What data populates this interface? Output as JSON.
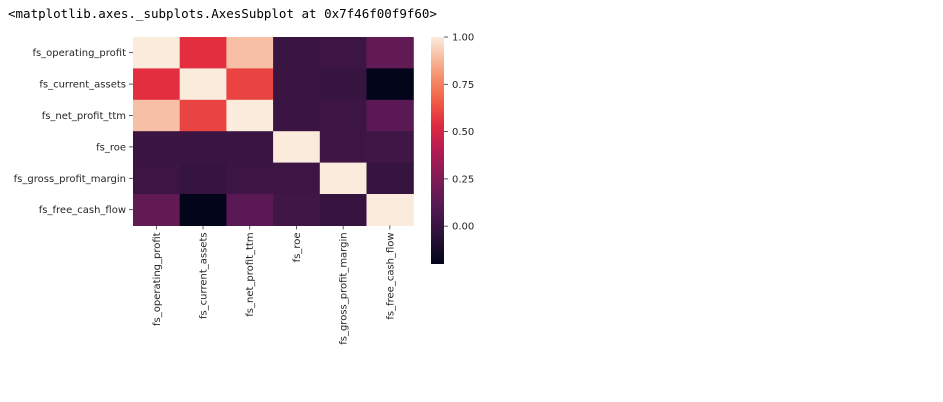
{
  "output_repr": "<matplotlib.axes._subplots.AxesSubplot at 0x7f46f00f9f60>",
  "chart_data": {
    "type": "heatmap",
    "title": "",
    "xlabel": "",
    "ylabel": "",
    "rows": [
      "fs_operating_profit",
      "fs_current_assets",
      "fs_net_profit_ttm",
      "fs_roe",
      "fs_gross_profit_margin",
      "fs_free_cash_flow"
    ],
    "columns": [
      "fs_operating_profit",
      "fs_current_assets",
      "fs_net_profit_ttm",
      "fs_roe",
      "fs_gross_profit_margin",
      "fs_free_cash_flow"
    ],
    "values": [
      [
        1.0,
        0.55,
        0.9,
        0.01,
        0.02,
        0.15
      ],
      [
        0.55,
        1.0,
        0.6,
        0.01,
        -0.01,
        -0.2
      ],
      [
        0.9,
        0.6,
        1.0,
        0.01,
        0.02,
        0.12
      ],
      [
        0.01,
        0.01,
        0.01,
        1.0,
        0.02,
        0.03
      ],
      [
        0.02,
        -0.01,
        0.02,
        0.02,
        1.0,
        -0.01
      ],
      [
        0.15,
        -0.2,
        0.12,
        0.03,
        -0.01,
        1.0
      ]
    ],
    "colormap": "rocket",
    "colorbar": {
      "range": [
        -0.2,
        1.0
      ],
      "ticks": [
        0.0,
        0.25,
        0.5,
        0.75,
        1.0
      ],
      "tick_labels": [
        "0.00",
        "0.25",
        "0.50",
        "0.75",
        "1.00"
      ],
      "placement": "right"
    },
    "grid": false
  }
}
